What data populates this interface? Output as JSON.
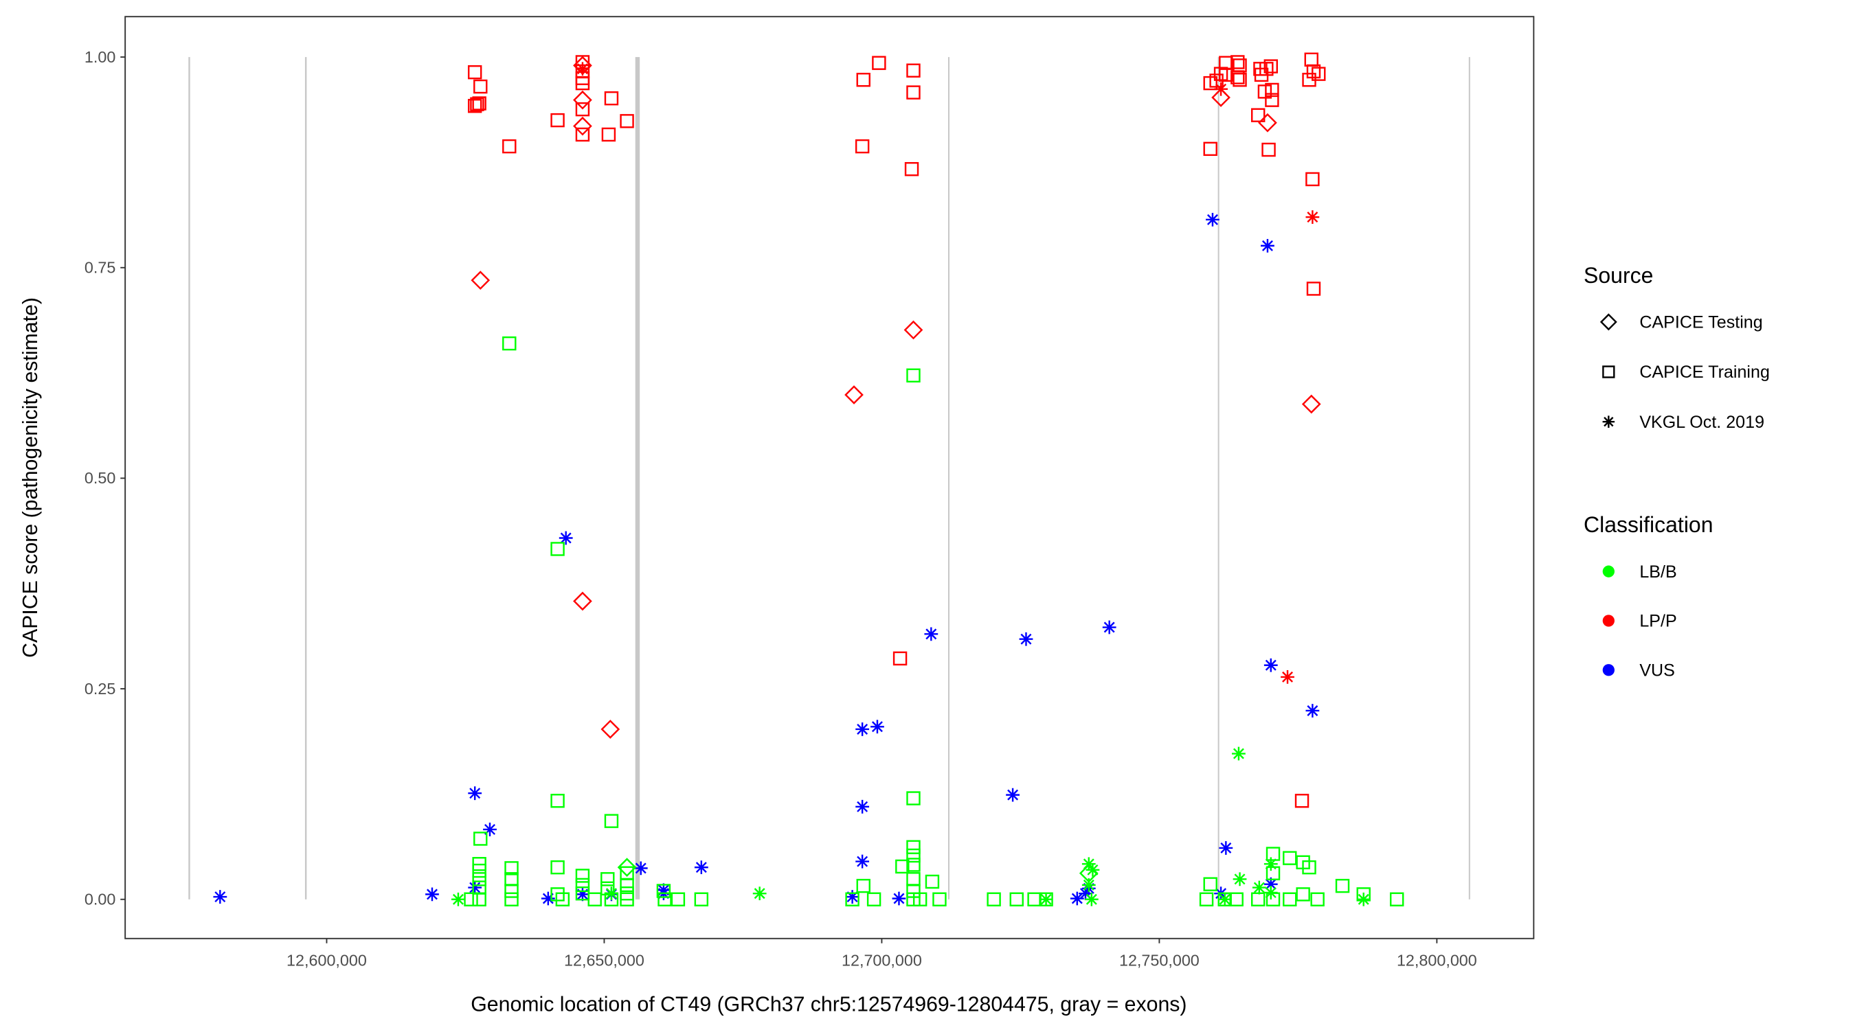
{
  "chart_data": {
    "type": "scatter",
    "xlabel": "Genomic location of CT49 (GRCh37 chr5:12574969-12804475, gray = exons)",
    "ylabel": "CAPICE score (pathogenicity estimate)",
    "xlim": [
      12563700,
      12817450
    ],
    "ylim": [
      -0.0465,
      1.048
    ],
    "x_ticks": [
      12600000,
      12650000,
      12700000,
      12750000,
      12800000
    ],
    "x_tick_labels": [
      "12,600,000",
      "12,650,000",
      "12,700,000",
      "12,750,000",
      "12,800,000"
    ],
    "y_ticks": [
      0,
      0.25,
      0.5,
      0.75,
      1.0
    ],
    "y_tick_labels": [
      "0.00",
      "0.25",
      "0.50",
      "0.75",
      "1.00"
    ],
    "grid": false,
    "legend_placement": "right",
    "exons": [
      [
        12575100,
        12575400
      ],
      [
        12596100,
        12596400
      ],
      [
        12655600,
        12656400
      ],
      [
        12711950,
        12712200
      ],
      [
        12760550,
        12760800
      ],
      [
        12805750,
        12806000
      ]
    ],
    "exon_color": "#c8c8c8",
    "legend": {
      "source_title": "Source",
      "sources": [
        {
          "key": "testing",
          "label": "CAPICE Testing",
          "shape": "diamond"
        },
        {
          "key": "training",
          "label": "CAPICE Training",
          "shape": "square"
        },
        {
          "key": "vkgl",
          "label": "VKGL Oct. 2019",
          "shape": "asterisk"
        }
      ],
      "classification_title": "Classification",
      "classes": [
        {
          "key": "LB/B",
          "label": "LB/B",
          "color": "#00ff00"
        },
        {
          "key": "LP/P",
          "label": "LP/P",
          "color": "#ff0000"
        },
        {
          "key": "VUS",
          "label": "VUS",
          "color": "#0000ff"
        }
      ]
    },
    "series": [
      {
        "source": "testing",
        "class": "LP/P",
        "points": [
          [
            12646100,
            0.949
          ],
          [
            12646100,
            0.918
          ],
          [
            12646100,
            0.99
          ],
          [
            12627700,
            0.735
          ],
          [
            12646100,
            0.354
          ],
          [
            12651100,
            0.202
          ],
          [
            12695000,
            0.599
          ],
          [
            12705700,
            0.676
          ],
          [
            12761100,
            0.952
          ],
          [
            12769500,
            0.922
          ],
          [
            12777400,
            0.588
          ]
        ]
      },
      {
        "source": "training",
        "class": "LP/P",
        "points": [
          [
            12626700,
            0.982
          ],
          [
            12627700,
            0.965
          ],
          [
            12626700,
            0.942
          ],
          [
            12627100,
            0.944
          ],
          [
            12627500,
            0.945
          ],
          [
            12632900,
            0.894
          ],
          [
            12641600,
            0.925
          ],
          [
            12646100,
            0.994
          ],
          [
            12646100,
            0.983
          ],
          [
            12646100,
            0.975
          ],
          [
            12646100,
            0.969
          ],
          [
            12646100,
            0.938
          ],
          [
            12646100,
            0.908
          ],
          [
            12651300,
            0.951
          ],
          [
            12650800,
            0.908
          ],
          [
            12654100,
            0.924
          ],
          [
            12696700,
            0.973
          ],
          [
            12699500,
            0.993
          ],
          [
            12705700,
            0.984
          ],
          [
            12705700,
            0.958
          ],
          [
            12696500,
            0.894
          ],
          [
            12705400,
            0.867
          ],
          [
            12703300,
            0.286
          ],
          [
            12759200,
            0.969
          ],
          [
            12760300,
            0.972
          ],
          [
            12761100,
            0.98
          ],
          [
            12762000,
            0.993
          ],
          [
            12764100,
            0.994
          ],
          [
            12764500,
            0.99
          ],
          [
            12762000,
            0.979
          ],
          [
            12764100,
            0.976
          ],
          [
            12764500,
            0.973
          ],
          [
            12759200,
            0.891
          ],
          [
            12767800,
            0.931
          ],
          [
            12768200,
            0.986
          ],
          [
            12768400,
            0.979
          ],
          [
            12769300,
            0.986
          ],
          [
            12770100,
            0.989
          ],
          [
            12770300,
            0.961
          ],
          [
            12769000,
            0.959
          ],
          [
            12770300,
            0.949
          ],
          [
            12769700,
            0.89
          ],
          [
            12777400,
            0.997
          ],
          [
            12777000,
            0.973
          ],
          [
            12778700,
            0.98
          ],
          [
            12777800,
            0.983
          ],
          [
            12777600,
            0.855
          ],
          [
            12777800,
            0.725
          ],
          [
            12775700,
            0.117
          ]
        ]
      },
      {
        "source": "vkgl",
        "class": "LP/P",
        "points": [
          [
            12646100,
            0.986
          ],
          [
            12761100,
            0.962
          ],
          [
            12777600,
            0.81
          ],
          [
            12773100,
            0.264
          ]
        ]
      },
      {
        "source": "vkgl",
        "class": "VUS",
        "points": [
          [
            12580800,
            0.003
          ],
          [
            12619000,
            0.006
          ],
          [
            12626700,
            0.126
          ],
          [
            12626700,
            0.014
          ],
          [
            12629400,
            0.083
          ],
          [
            12639900,
            0.001
          ],
          [
            12643100,
            0.429
          ],
          [
            12646100,
            0.006
          ],
          [
            12651300,
            0.006
          ],
          [
            12656600,
            0.037
          ],
          [
            12660700,
            0.011
          ],
          [
            12660700,
            0.007
          ],
          [
            12667500,
            0.038
          ],
          [
            12694700,
            0.003
          ],
          [
            12696500,
            0.202
          ],
          [
            12699200,
            0.205
          ],
          [
            12696500,
            0.11
          ],
          [
            12696500,
            0.045
          ],
          [
            12703100,
            0.001
          ],
          [
            12708900,
            0.315
          ],
          [
            12723600,
            0.124
          ],
          [
            12726000,
            0.309
          ],
          [
            12741000,
            0.323
          ],
          [
            12735200,
            0.001
          ],
          [
            12736700,
            0.007
          ],
          [
            12737300,
            0.013
          ],
          [
            12759600,
            0.807
          ],
          [
            12762000,
            0.061
          ],
          [
            12761100,
            0.007
          ],
          [
            12769500,
            0.776
          ],
          [
            12770100,
            0.278
          ],
          [
            12770100,
            0.018
          ],
          [
            12777600,
            0.224
          ]
        ]
      },
      {
        "source": "training",
        "class": "LB/B",
        "points": [
          [
            12627700,
            0.072
          ],
          [
            12641600,
            0.117
          ],
          [
            12641600,
            0.038
          ],
          [
            12641600,
            0.416
          ],
          [
            12632900,
            0.66
          ],
          [
            12651300,
            0.093
          ],
          [
            12705700,
            0.622
          ],
          [
            12705700,
            0.12
          ],
          [
            12696700,
            0.016
          ],
          [
            12705700,
            0.062
          ],
          [
            12705700,
            0.052
          ],
          [
            12705700,
            0.041
          ],
          [
            12703700,
            0.039
          ],
          [
            12709100,
            0.021
          ],
          [
            12706900,
            0
          ],
          [
            12710400,
            0
          ],
          [
            12698600,
            0
          ],
          [
            12720200,
            0
          ],
          [
            12724300,
            0
          ],
          [
            12727500,
            0
          ],
          [
            12729600,
            0
          ],
          [
            12759200,
            0.018
          ],
          [
            12770500,
            0.054
          ],
          [
            12773500,
            0.049
          ],
          [
            12775900,
            0.044
          ],
          [
            12777000,
            0.038
          ],
          [
            12783000,
            0.016
          ],
          [
            12786800,
            0.006
          ],
          [
            12792800,
            0
          ],
          [
            12763900,
            0
          ],
          [
            12767800,
            0
          ],
          [
            12773500,
            0
          ],
          [
            12775900,
            0.006
          ],
          [
            12778500,
            0
          ],
          [
            12758500,
            0
          ],
          [
            12761800,
            0
          ],
          [
            12627500,
            0.042
          ],
          [
            12627500,
            0.034
          ],
          [
            12627500,
            0.024
          ],
          [
            12627500,
            0.014
          ],
          [
            12627500,
            0
          ],
          [
            12626000,
            0
          ],
          [
            12633300,
            0.037
          ],
          [
            12633300,
            0.024
          ],
          [
            12633300,
            0.01
          ],
          [
            12633300,
            0
          ],
          [
            12641600,
            0.006
          ],
          [
            12642500,
            0
          ],
          [
            12646100,
            0.028
          ],
          [
            12646100,
            0.017
          ],
          [
            12646100,
            0.007
          ],
          [
            12648300,
            0
          ],
          [
            12650600,
            0.024
          ],
          [
            12650600,
            0.013
          ],
          [
            12651300,
            0
          ],
          [
            12654100,
            0.031
          ],
          [
            12654100,
            0.017
          ],
          [
            12654100,
            0.007
          ],
          [
            12654100,
            0
          ],
          [
            12660900,
            0
          ],
          [
            12663300,
            0
          ],
          [
            12667500,
            0
          ],
          [
            12660700,
            0.01
          ],
          [
            12770500,
            0.031
          ],
          [
            12770500,
            0
          ],
          [
            12694700,
            0
          ],
          [
            12705700,
            0.024
          ],
          [
            12705700,
            0.01
          ],
          [
            12705700,
            0
          ]
        ]
      },
      {
        "source": "testing",
        "class": "LB/B",
        "points": [
          [
            12654100,
            0.038
          ],
          [
            12737300,
            0.031
          ]
        ]
      },
      {
        "source": "vkgl",
        "class": "LB/B",
        "points": [
          [
            12623700,
            0
          ],
          [
            12651300,
            0.007
          ],
          [
            12678000,
            0.007
          ],
          [
            12737300,
            0.042
          ],
          [
            12738000,
            0.035
          ],
          [
            12737300,
            0.017
          ],
          [
            12737800,
            0
          ],
          [
            12729600,
            0
          ],
          [
            12764300,
            0.173
          ],
          [
            12764500,
            0.024
          ],
          [
            12761800,
            0
          ],
          [
            12770100,
            0.042
          ],
          [
            12770100,
            0.008
          ],
          [
            12768000,
            0.014
          ],
          [
            12786800,
            0
          ]
        ]
      }
    ]
  }
}
